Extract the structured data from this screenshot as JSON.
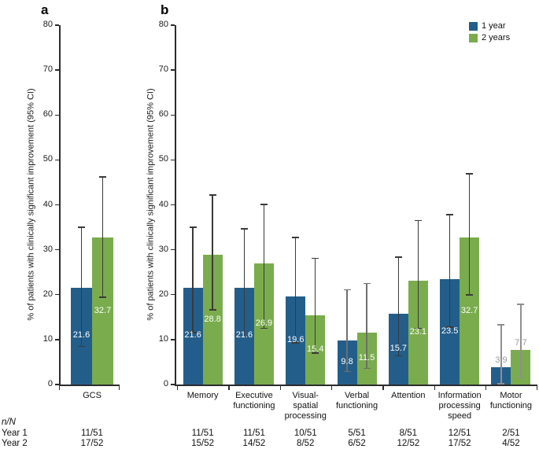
{
  "figure": {
    "panels": [
      {
        "letter": "a"
      },
      {
        "letter": "b"
      }
    ],
    "y_axis_label": "% of patients with clinically significant improvement (95% CI)",
    "legend": {
      "items": [
        {
          "label": "1 year",
          "color": "#235E8A"
        },
        {
          "label": "2 years",
          "color": "#7AAC4D"
        }
      ]
    }
  },
  "colors": {
    "year1_bar": "#235E8A",
    "year2_bar": "#7AAC4D",
    "error_bar_default": "#3a3a3a",
    "error_bar_verbal": "#6e6e6e",
    "error_bar_motor": "#8f8f8f",
    "inside_value_label": "#ffffff",
    "outside_value_label": "#9a9a9a"
  },
  "chart_data": [
    {
      "type": "bar",
      "panel": "a",
      "categories": [
        "GCS"
      ],
      "category_label_lines": [
        [
          "GCS"
        ]
      ],
      "ylim": [
        0,
        80
      ],
      "yticks": [
        0,
        10,
        20,
        30,
        40,
        50,
        60,
        70,
        80
      ],
      "ylabel": "% of patients with clinically significant improvement (95% CI)",
      "grid": false,
      "legend_position": "none",
      "series": [
        {
          "name": "1 year",
          "color": "#235E8A",
          "values": [
            21.6
          ],
          "ci_low": [
            8.5
          ],
          "ci_high": [
            35.0
          ]
        },
        {
          "name": "2 years",
          "color": "#7AAC4D",
          "values": [
            32.7
          ],
          "ci_low": [
            19.5
          ],
          "ci_high": [
            46.2
          ]
        }
      ]
    },
    {
      "type": "bar",
      "panel": "b",
      "categories": [
        "Memory",
        "Executive functioning",
        "Visual-spatial processing",
        "Verbal functioning",
        "Attention",
        "Information processing speed",
        "Motor functioning"
      ],
      "category_label_lines": [
        [
          "Memory"
        ],
        [
          "Executive",
          "functioning"
        ],
        [
          "Visual-",
          "spatial",
          "processing"
        ],
        [
          "Verbal",
          "functioning"
        ],
        [
          "Attention"
        ],
        [
          "Information",
          "processing",
          "speed"
        ],
        [
          "Motor",
          "functioning"
        ]
      ],
      "ylim": [
        0,
        80
      ],
      "yticks": [
        0,
        10,
        20,
        30,
        40,
        50,
        60,
        70,
        80
      ],
      "ylabel": "% of patients with clinically significant improvement (95% CI)",
      "grid": false,
      "legend_position": "top-right",
      "series": [
        {
          "name": "1 year",
          "color": "#235E8A",
          "values": [
            21.6,
            21.6,
            19.6,
            9.8,
            15.7,
            23.5,
            3.9
          ],
          "ci_low": [
            11.5,
            10.6,
            9.3,
            2.9,
            6.4,
            12.8,
            0.2
          ],
          "ci_high": [
            35.0,
            34.7,
            32.8,
            21.1,
            28.4,
            37.8,
            13.3
          ]
        },
        {
          "name": "2 years",
          "color": "#7AAC4D",
          "values": [
            28.8,
            26.9,
            15.4,
            11.5,
            23.1,
            32.7,
            7.7
          ],
          "ci_low": [
            16.6,
            12.5,
            7.0,
            3.6,
            12.5,
            20.0,
            1.5
          ],
          "ci_high": [
            42.2,
            40.1,
            28.1,
            22.5,
            36.5,
            46.9,
            17.8
          ]
        }
      ],
      "outside_label_categories": [
        6
      ],
      "gray_error_categories": [
        3,
        6
      ]
    }
  ],
  "table": {
    "header": "n/N",
    "rows": [
      {
        "label": "Year 1",
        "gcs": "11/51",
        "values": [
          "11/51",
          "11/51",
          "10/51",
          "5/51",
          "8/51",
          "12/51",
          "2/51"
        ]
      },
      {
        "label": "Year 2",
        "gcs": "17/52",
        "values": [
          "15/52",
          "14/52",
          "8/52",
          "6/52",
          "12/52",
          "17/52",
          "4/52"
        ]
      }
    ]
  }
}
